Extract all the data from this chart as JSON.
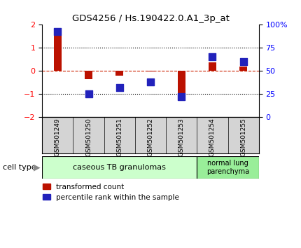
{
  "title": "GDS4256 / Hs.190422.0.A1_3p_at",
  "samples": [
    "GSM501249",
    "GSM501250",
    "GSM501251",
    "GSM501252",
    "GSM501253",
    "GSM501254",
    "GSM501255"
  ],
  "red_values": [
    1.85,
    -0.35,
    -0.2,
    -0.03,
    -1.1,
    0.38,
    0.2
  ],
  "blue_values_pct": [
    93,
    25,
    32,
    38,
    22,
    65,
    60
  ],
  "ylim_left": [
    -2,
    2
  ],
  "ylim_right": [
    0,
    100
  ],
  "yticks_left": [
    -2,
    -1,
    0,
    1,
    2
  ],
  "yticks_right": [
    0,
    25,
    50,
    75,
    100
  ],
  "ytick_labels_right": [
    "0",
    "25",
    "50",
    "75",
    "100%"
  ],
  "red_color": "#bb1100",
  "blue_color": "#2222bb",
  "zero_line_color": "#cc2200",
  "dotted_line_color": "#000000",
  "red_bar_width": 0.25,
  "blue_marker_size": 60,
  "cell_type_label": "cell type",
  "group1_label": "caseous TB granulomas",
  "group2_label": "normal lung\nparenchyma",
  "group1_color": "#ccffcc",
  "group2_color": "#99ee99",
  "legend_red": "transformed count",
  "legend_blue": "percentile rank within the sample",
  "bg_color": "#ffffff",
  "label_bg_color": "#d4d4d4"
}
